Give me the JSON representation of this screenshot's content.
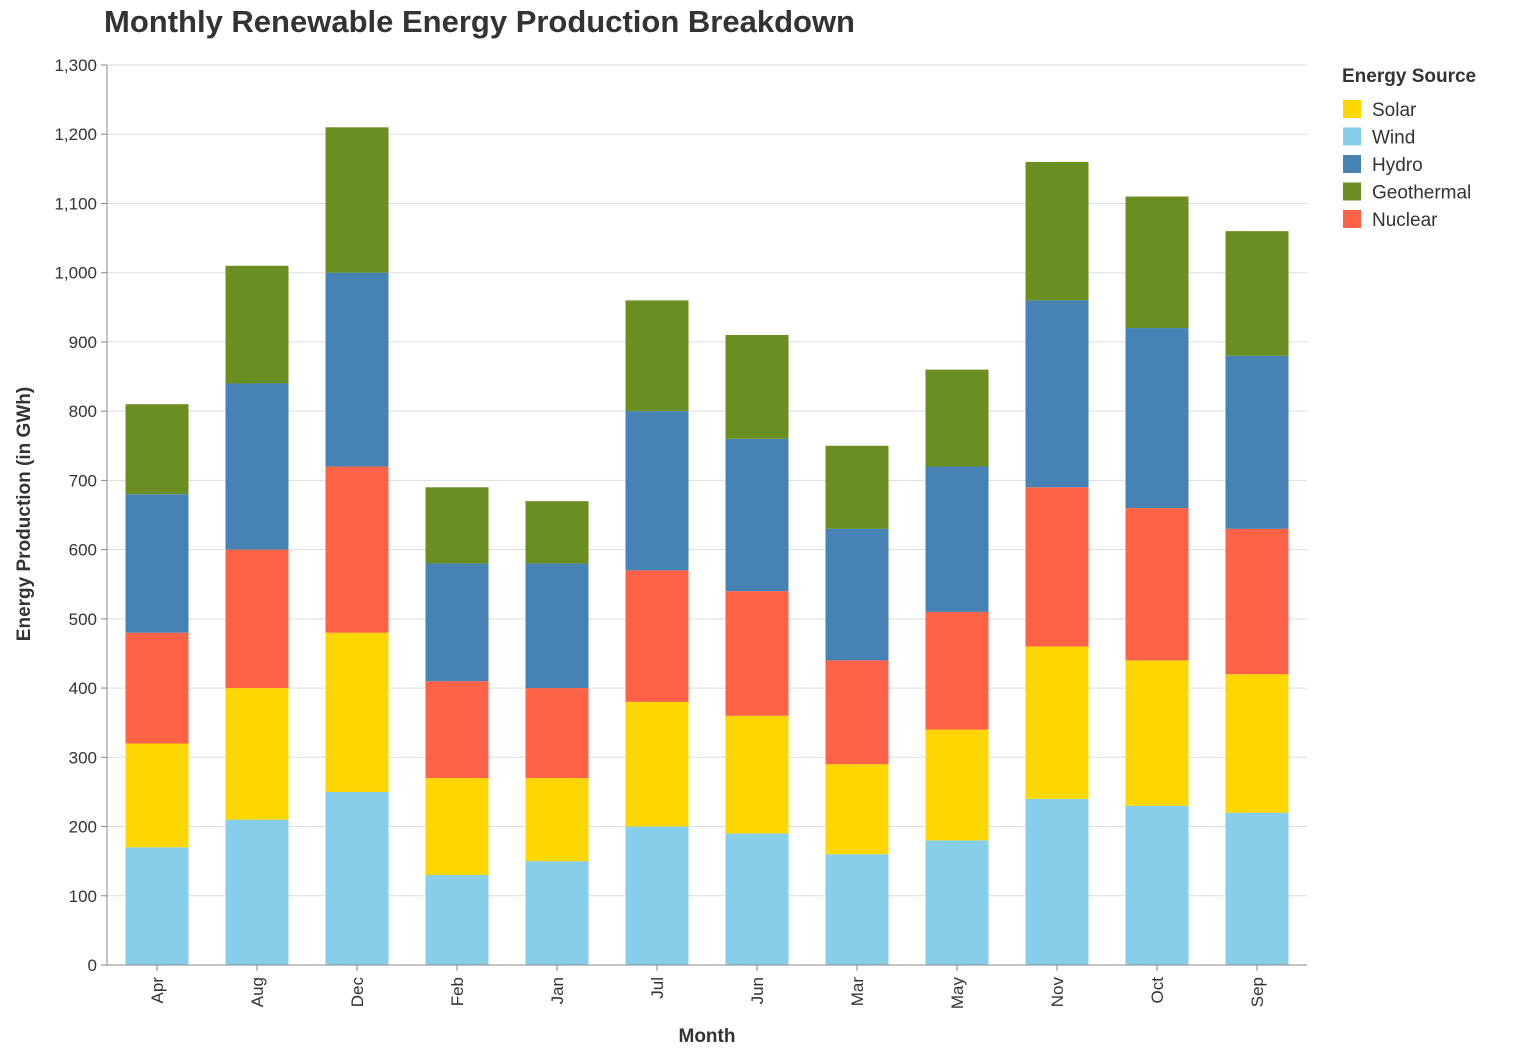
{
  "chart_data": {
    "type": "bar",
    "stacked": true,
    "title": "Monthly Renewable Energy Production Breakdown",
    "xlabel": "Month",
    "ylabel": "Energy Production (in GWh)",
    "ylim": [
      0,
      1300
    ],
    "yticks": [
      0,
      100,
      200,
      300,
      400,
      500,
      600,
      700,
      800,
      900,
      1000,
      1100,
      1200,
      1300
    ],
    "grid": true,
    "legend_position": "right",
    "legend_title": "Energy Source",
    "categories": [
      "Apr",
      "Aug",
      "Dec",
      "Feb",
      "Jan",
      "Jul",
      "Jun",
      "Mar",
      "May",
      "Nov",
      "Oct",
      "Sep"
    ],
    "legend_order": [
      "Solar",
      "Wind",
      "Hydro",
      "Geothermal",
      "Nuclear"
    ],
    "series": [
      {
        "name": "Wind",
        "color": "#87CEEB",
        "values": [
          170,
          210,
          250,
          130,
          150,
          200,
          190,
          160,
          180,
          240,
          230,
          220
        ]
      },
      {
        "name": "Solar",
        "color": "#FFD700",
        "values": [
          150,
          190,
          230,
          140,
          120,
          180,
          170,
          130,
          160,
          220,
          210,
          200
        ]
      },
      {
        "name": "Nuclear",
        "color": "#FF6347",
        "values": [
          160,
          200,
          240,
          140,
          130,
          190,
          180,
          150,
          170,
          230,
          220,
          210
        ]
      },
      {
        "name": "Hydro",
        "color": "#4682B4",
        "values": [
          200,
          240,
          280,
          170,
          180,
          230,
          220,
          190,
          210,
          270,
          260,
          250
        ]
      },
      {
        "name": "Geothermal",
        "color": "#6B8E23",
        "values": [
          130,
          170,
          210,
          110,
          90,
          160,
          150,
          120,
          140,
          200,
          190,
          180
        ]
      }
    ]
  }
}
